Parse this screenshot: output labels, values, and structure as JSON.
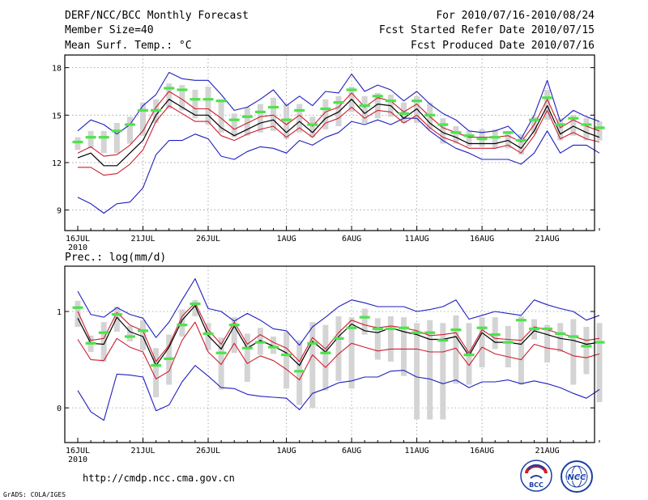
{
  "header": {
    "title": "DERF/NCC/BCC Monthly Forecast",
    "member_size": "Member Size=40",
    "variable": "Mean Surf. Temp.: °C",
    "period": "For 2010/07/16-2010/08/24",
    "started": "Fcst Started Refer Date 2010/07/15",
    "produced": "Fcst Produced Date 2010/07/16"
  },
  "footer": {
    "url": "http://cmdp.ncc.cma.gov.cn",
    "grads": "GrADS: COLA/IGES",
    "logo_bcc": "BCC",
    "logo_ncc": "NCC"
  },
  "colors": {
    "bar": "#d4d4d4",
    "mean": "#000000",
    "spread": "#cc1f2f",
    "extreme": "#1f1fc0",
    "marker": "#4ce34c",
    "logo_blue": "#1a3fa8",
    "logo_red": "#d42020"
  },
  "chart_data": [
    {
      "type": "line",
      "title": "Mean Surf. Temp.: °C",
      "x_label": "day (2010-07-16 to 2010-08-24)",
      "x_tick_labels": [
        "16JUL",
        "21JUL",
        "26JUL",
        "1AUG",
        "6AUG",
        "11AUG",
        "16AUG",
        "21AUG"
      ],
      "x_tick_index": [
        0,
        5,
        10,
        16,
        21,
        26,
        31,
        36
      ],
      "x_first_year": "2010",
      "ylim": [
        7.7,
        18.8
      ],
      "y_ticks": [
        9,
        12,
        15,
        18
      ],
      "y_tick_labels": [
        "9",
        "12",
        "15",
        "18"
      ],
      "series": {
        "ens_max": [
          9.8,
          9.4,
          8.8,
          9.4,
          9.5,
          10.4,
          12.5,
          13.4,
          13.4,
          13.8,
          13.5,
          12.4,
          12.2,
          12.7,
          13.0,
          12.9,
          12.6,
          13.4,
          13.1,
          13.6,
          13.9,
          14.6,
          14.4,
          14.7,
          14.4,
          14.8,
          14.8,
          14.0,
          13.4,
          12.9,
          12.6,
          12.2,
          12.2,
          12.2,
          11.9,
          12.6,
          14.0,
          12.6,
          13.1,
          13.1,
          12.6
        ],
        "ens_min": [
          14.0,
          14.7,
          14.4,
          13.8,
          14.4,
          15.6,
          16.3,
          17.7,
          17.3,
          17.2,
          17.2,
          16.3,
          15.3,
          15.5,
          16.0,
          16.6,
          15.6,
          16.2,
          15.6,
          16.5,
          16.4,
          17.6,
          16.5,
          16.9,
          16.6,
          15.9,
          16.5,
          15.7,
          15.1,
          14.7,
          14.0,
          13.9,
          14.0,
          14.3,
          13.5,
          15.0,
          17.2,
          14.6,
          15.3,
          14.9,
          14.6
        ],
        "mean": [
          12.3,
          12.6,
          11.8,
          11.8,
          12.6,
          13.4,
          15.0,
          16.0,
          15.5,
          15.0,
          15.0,
          14.2,
          13.7,
          14.1,
          14.5,
          14.7,
          13.9,
          14.6,
          13.9,
          14.8,
          15.2,
          16.0,
          15.1,
          15.7,
          15.6,
          14.8,
          15.4,
          14.5,
          13.9,
          13.6,
          13.2,
          13.2,
          13.2,
          13.4,
          12.9,
          14.0,
          15.6,
          13.8,
          14.3,
          13.9,
          13.6
        ],
        "mean_minus": [
          11.7,
          11.7,
          11.2,
          11.3,
          11.9,
          12.8,
          14.6,
          15.6,
          15.1,
          14.6,
          14.6,
          13.7,
          13.4,
          13.8,
          14.1,
          14.3,
          13.6,
          14.2,
          13.6,
          14.5,
          14.8,
          15.5,
          14.8,
          15.3,
          15.2,
          14.5,
          15.0,
          14.2,
          13.6,
          13.3,
          12.9,
          12.9,
          12.9,
          13.1,
          12.6,
          13.7,
          15.3,
          13.5,
          13.9,
          13.5,
          13.3
        ],
        "mean_plus": [
          12.6,
          13.0,
          12.4,
          12.5,
          13.1,
          14.0,
          15.5,
          16.5,
          16.0,
          15.4,
          15.4,
          14.8,
          14.1,
          14.5,
          14.9,
          15.0,
          14.4,
          15.0,
          14.3,
          15.2,
          15.5,
          16.4,
          15.5,
          16.1,
          15.9,
          15.2,
          15.7,
          14.9,
          14.2,
          13.9,
          13.6,
          13.6,
          13.6,
          13.7,
          13.3,
          14.4,
          16.0,
          14.2,
          14.7,
          14.3,
          14.0
        ],
        "marker": [
          13.3,
          13.6,
          13.6,
          14.0,
          14.4,
          15.3,
          15.3,
          16.7,
          16.6,
          16.0,
          16.0,
          15.9,
          14.7,
          14.9,
          15.2,
          15.5,
          14.7,
          15.3,
          14.4,
          15.4,
          15.8,
          16.6,
          15.6,
          16.2,
          15.9,
          15.1,
          15.9,
          15.0,
          14.4,
          13.9,
          13.7,
          13.5,
          13.6,
          13.9,
          13.4,
          14.7,
          16.1,
          14.4,
          14.8,
          14.4,
          14.2
        ],
        "bar_low": [
          12.8,
          12.9,
          12.6,
          12.6,
          13.2,
          13.7,
          14.5,
          15.4,
          15.3,
          14.8,
          14.4,
          13.9,
          13.6,
          13.7,
          13.9,
          14.0,
          13.5,
          13.9,
          13.6,
          14.1,
          14.3,
          15.2,
          14.5,
          14.8,
          14.9,
          14.5,
          14.5,
          14.1,
          13.2,
          13.2,
          13.0,
          13.0,
          12.9,
          12.9,
          12.5,
          13.8,
          14.7,
          13.4,
          13.7,
          13.4,
          13.4
        ],
        "bar_high": [
          13.6,
          14.0,
          14.0,
          14.5,
          14.9,
          15.8,
          16.0,
          17.0,
          16.9,
          16.6,
          16.8,
          16.0,
          15.1,
          15.5,
          15.7,
          16.1,
          15.7,
          15.7,
          14.9,
          16.0,
          16.2,
          16.8,
          16.2,
          16.4,
          16.3,
          15.8,
          16.2,
          15.8,
          14.8,
          14.3,
          14.0,
          14.1,
          14.1,
          14.0,
          13.8,
          14.9,
          16.6,
          14.8,
          15.0,
          14.8,
          14.6
        ]
      }
    },
    {
      "type": "line",
      "title": "Prec.: log(mm/d)",
      "x_label": "day (2010-07-16 to 2010-08-24)",
      "x_tick_labels": [
        "16JUL",
        "21JUL",
        "26JUL",
        "1AUG",
        "6AUG",
        "11AUG",
        "16AUG",
        "21AUG"
      ],
      "x_tick_index": [
        0,
        5,
        10,
        16,
        21,
        26,
        31,
        36
      ],
      "x_first_year": "2010",
      "ylim": [
        -0.36,
        1.47
      ],
      "y_ticks": [
        0,
        1
      ],
      "y_tick_labels": [
        "0",
        "1"
      ],
      "series": {
        "ens_max": [
          1.21,
          0.97,
          0.94,
          1.04,
          0.97,
          0.93,
          0.73,
          0.89,
          1.12,
          1.34,
          1.03,
          1.0,
          0.9,
          0.98,
          0.91,
          0.82,
          0.8,
          0.65,
          0.84,
          0.94,
          1.05,
          1.12,
          1.09,
          1.05,
          1.05,
          1.05,
          1.0,
          1.02,
          1.05,
          1.12,
          0.92,
          0.96,
          1.0,
          0.98,
          0.96,
          1.12,
          1.07,
          1.03,
          1.0,
          0.91,
          0.96
        ],
        "ens_min": [
          0.18,
          -0.04,
          -0.13,
          0.35,
          0.34,
          0.32,
          -0.03,
          0.03,
          0.27,
          0.44,
          0.33,
          0.21,
          0.2,
          0.14,
          0.12,
          0.11,
          0.1,
          -0.02,
          0.15,
          0.2,
          0.26,
          0.28,
          0.32,
          0.32,
          0.38,
          0.39,
          0.32,
          0.3,
          0.25,
          0.29,
          0.21,
          0.27,
          0.27,
          0.29,
          0.25,
          0.28,
          0.25,
          0.21,
          0.15,
          0.1,
          0.19
        ],
        "mean": [
          0.93,
          0.67,
          0.66,
          0.94,
          0.79,
          0.74,
          0.44,
          0.63,
          0.91,
          1.06,
          0.75,
          0.61,
          0.85,
          0.62,
          0.7,
          0.64,
          0.57,
          0.44,
          0.69,
          0.58,
          0.74,
          0.87,
          0.8,
          0.78,
          0.83,
          0.79,
          0.76,
          0.71,
          0.71,
          0.74,
          0.54,
          0.78,
          0.68,
          0.68,
          0.66,
          0.8,
          0.76,
          0.72,
          0.7,
          0.66,
          0.68
        ],
        "mean_minus": [
          0.71,
          0.5,
          0.49,
          0.72,
          0.63,
          0.58,
          0.3,
          0.38,
          0.7,
          0.89,
          0.58,
          0.45,
          0.67,
          0.46,
          0.54,
          0.49,
          0.4,
          0.29,
          0.55,
          0.42,
          0.56,
          0.67,
          0.63,
          0.59,
          0.61,
          0.61,
          0.61,
          0.58,
          0.58,
          0.62,
          0.44,
          0.63,
          0.56,
          0.53,
          0.5,
          0.66,
          0.62,
          0.6,
          0.54,
          0.52,
          0.56
        ],
        "mean_plus": [
          1.0,
          0.7,
          0.72,
          0.99,
          0.86,
          0.8,
          0.48,
          0.65,
          0.95,
          1.09,
          0.81,
          0.66,
          0.89,
          0.66,
          0.76,
          0.68,
          0.62,
          0.48,
          0.73,
          0.61,
          0.78,
          0.91,
          0.86,
          0.83,
          0.85,
          0.83,
          0.8,
          0.75,
          0.76,
          0.78,
          0.57,
          0.81,
          0.72,
          0.71,
          0.7,
          0.84,
          0.81,
          0.77,
          0.74,
          0.7,
          0.72
        ],
        "marker": [
          1.04,
          0.67,
          0.78,
          0.97,
          0.74,
          0.8,
          0.44,
          0.51,
          0.86,
          1.08,
          0.77,
          0.57,
          0.86,
          0.62,
          0.68,
          0.63,
          0.55,
          0.38,
          0.67,
          0.57,
          0.72,
          0.83,
          0.94,
          0.82,
          0.82,
          0.83,
          0.78,
          0.78,
          0.7,
          0.81,
          0.55,
          0.83,
          0.76,
          0.68,
          0.91,
          0.82,
          0.82,
          0.77,
          0.74,
          0.64,
          0.68
        ],
        "bar_low": [
          0.84,
          0.58,
          0.48,
          0.79,
          0.69,
          0.6,
          0.11,
          0.24,
          0.74,
          0.95,
          0.6,
          0.19,
          0.57,
          0.27,
          0.55,
          0.56,
          0.2,
          0.03,
          0.0,
          0.18,
          0.28,
          0.2,
          0.76,
          0.5,
          0.48,
          0.33,
          -0.12,
          -0.12,
          -0.12,
          0.25,
          0.24,
          0.42,
          0.61,
          0.42,
          0.24,
          0.71,
          0.47,
          0.58,
          0.24,
          0.35,
          0.06
        ],
        "bar_high": [
          1.11,
          0.75,
          0.89,
          1.05,
          0.85,
          0.91,
          0.62,
          0.76,
          1.02,
          1.12,
          0.88,
          0.73,
          0.94,
          0.77,
          0.83,
          0.74,
          0.79,
          0.7,
          0.89,
          0.86,
          0.95,
          0.94,
          1.03,
          0.93,
          0.95,
          0.94,
          0.88,
          0.91,
          0.88,
          0.96,
          0.88,
          0.94,
          0.94,
          0.85,
          0.95,
          0.92,
          0.86,
          0.88,
          0.92,
          0.84,
          0.88
        ]
      }
    }
  ]
}
